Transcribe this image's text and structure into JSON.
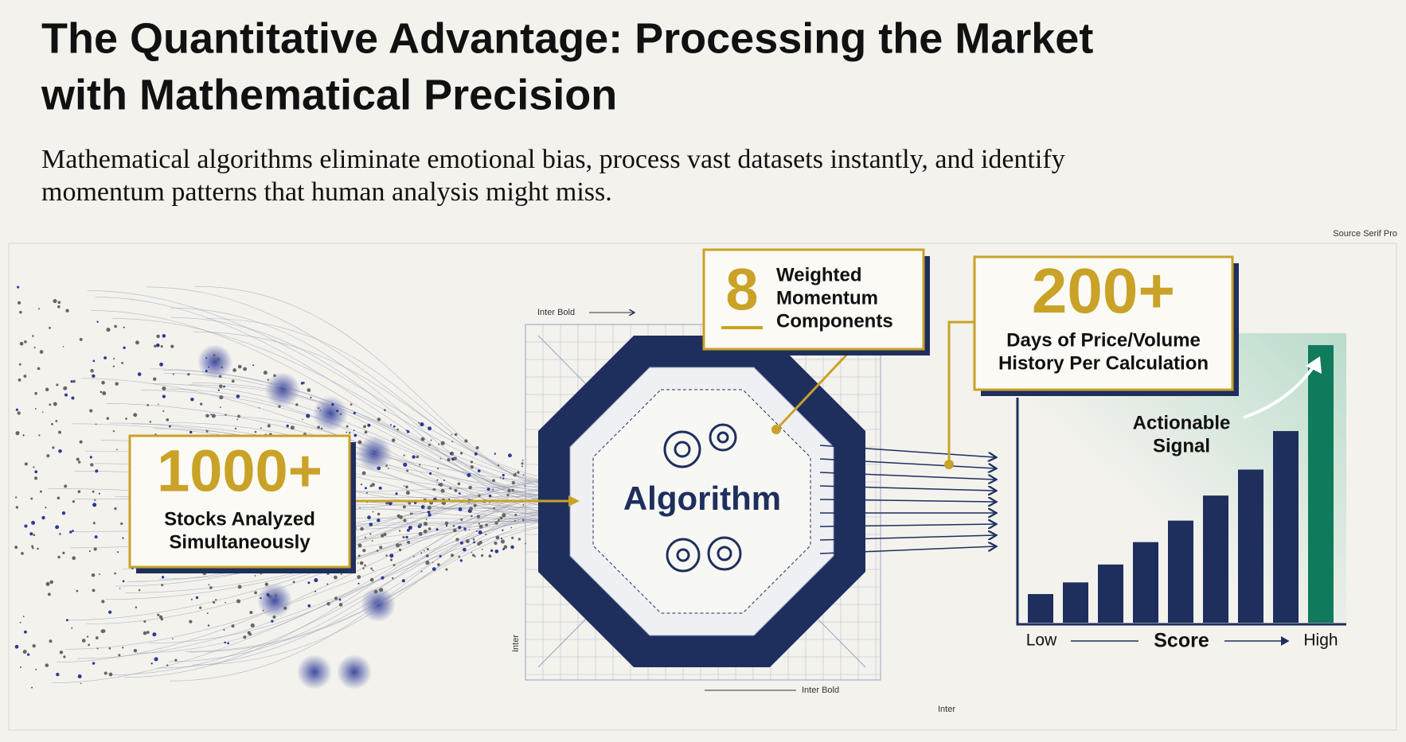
{
  "header": {
    "title_line1": "The Quantitative Advantage: Processing the Market",
    "title_line2": "with Mathematical Precision",
    "subtitle_line1": "Mathematical algorithms eliminate emotional bias, process vast datasets instantly, and identify",
    "subtitle_line2": "momentum patterns that human analysis might miss."
  },
  "annotations": {
    "source": "Source Serif Pro",
    "top_dim": "Inter Bold",
    "bottom_dim": "Inter Bold",
    "left_dim": "Inter",
    "bottom_right": "Inter"
  },
  "stats": [
    {
      "number": "1000+",
      "line1": "Stocks Analyzed",
      "line2": "Simultaneously"
    },
    {
      "number": "8",
      "line1": "Weighted",
      "line2": "Momentum",
      "line3": "Components"
    },
    {
      "number": "200+",
      "line1": "Days of Price/Volume",
      "line2": "History Per Calculation"
    }
  ],
  "engine": {
    "label": "Algorithm"
  },
  "chart": {
    "values": [
      32,
      45,
      65,
      90,
      114,
      142,
      171,
      214,
      310
    ],
    "color": "#1e2f5e",
    "highlight_color": "#0f7a5c",
    "signal_line1": "Actionable",
    "signal_line2": "Signal",
    "low": "Low",
    "axis": "Score",
    "high": "High"
  }
}
